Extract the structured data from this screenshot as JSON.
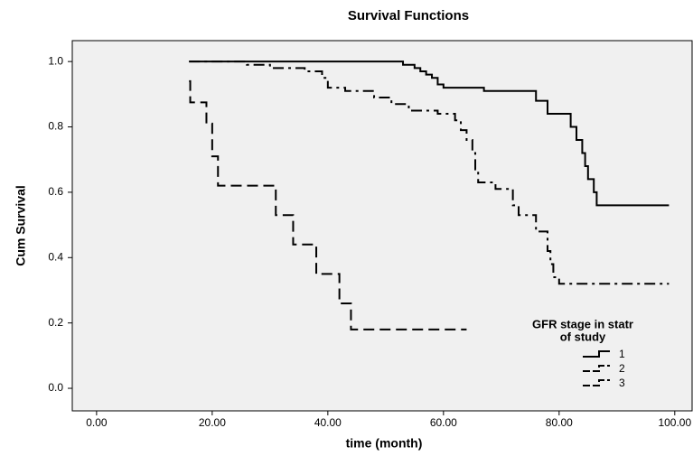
{
  "chart_data": {
    "type": "step",
    "title": "Survival Functions",
    "xlabel": "time (month)",
    "ylabel": "Cum Survival",
    "xlim": [
      -4.2,
      103
    ],
    "ylim": [
      -0.069,
      1.064
    ],
    "xticks": [
      {
        "value": 0,
        "label": "0.00"
      },
      {
        "value": 20,
        "label": "20.00"
      },
      {
        "value": 40,
        "label": "40.00"
      },
      {
        "value": 60,
        "label": "60.00"
      },
      {
        "value": 80,
        "label": "80.00"
      },
      {
        "value": 100,
        "label": "100.00"
      }
    ],
    "yticks": [
      {
        "value": 0,
        "label": "0.0"
      },
      0.2,
      0.4,
      0.6,
      0.8,
      {
        "value": 1,
        "label": "1.0"
      }
    ],
    "legend_title": [
      "GFR stage in statr",
      "of study"
    ],
    "legend_position": "lower right",
    "series": [
      {
        "name": "1",
        "color": "#000000",
        "dash": "solid",
        "x": [
          16,
          53,
          55,
          56,
          57,
          58,
          59,
          60,
          67,
          76,
          78,
          82,
          83,
          84,
          84.5,
          85,
          86,
          86.5,
          99
        ],
        "values": [
          1.0,
          0.99,
          0.98,
          0.97,
          0.96,
          0.95,
          0.93,
          0.92,
          0.91,
          0.88,
          0.84,
          0.8,
          0.76,
          0.72,
          0.68,
          0.64,
          0.6,
          0.56,
          0.56
        ]
      },
      {
        "name": "2",
        "color": "#000000",
        "dash": "dashdot",
        "x": [
          16,
          26,
          30,
          36,
          39,
          40,
          43,
          48,
          51,
          54,
          59,
          62,
          63,
          64,
          65,
          65.5,
          66,
          69,
          72,
          73,
          76,
          78,
          78.5,
          79,
          80,
          99
        ],
        "values": [
          1.0,
          0.99,
          0.98,
          0.97,
          0.95,
          0.92,
          0.91,
          0.89,
          0.87,
          0.85,
          0.84,
          0.82,
          0.79,
          0.76,
          0.72,
          0.67,
          0.63,
          0.61,
          0.56,
          0.53,
          0.48,
          0.42,
          0.38,
          0.34,
          0.32,
          0.32
        ]
      },
      {
        "name": "3",
        "color": "#000000",
        "dash": "dashed",
        "x": [
          16,
          16.2,
          19,
          20,
          21,
          31,
          34,
          38,
          42,
          44,
          64
        ],
        "values": [
          0.94,
          0.875,
          0.81,
          0.71,
          0.62,
          0.53,
          0.44,
          0.35,
          0.26,
          0.18,
          0.18
        ]
      }
    ]
  }
}
